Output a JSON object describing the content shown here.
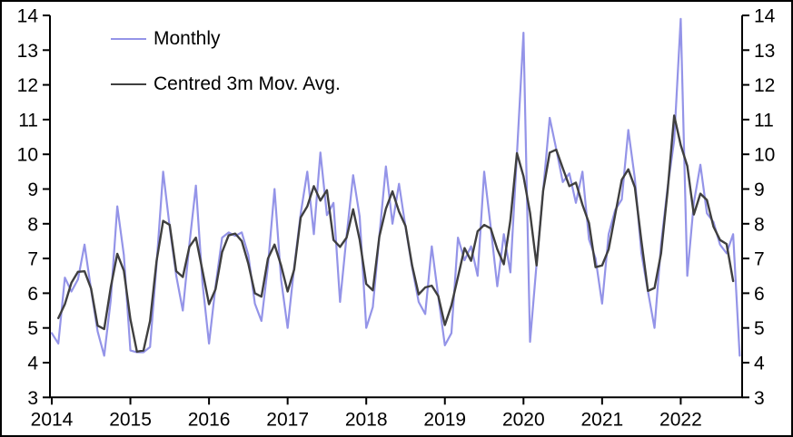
{
  "colors": {
    "background": "#ffffff",
    "axis": "#000000",
    "monthly_line": "#9494e8",
    "moving_avg_line": "#3f3f3f",
    "frame_border": "#000000"
  },
  "chart_data": {
    "type": "line",
    "title": "",
    "xlabel": "",
    "ylabel": "",
    "x_axis": {
      "tick_labels": [
        "2014",
        "2015",
        "2016",
        "2017",
        "2018",
        "2019",
        "2020",
        "2021",
        "2022"
      ],
      "start_month": "2014-01",
      "end_month": "2022-10"
    },
    "y_axis": {
      "ticks": [
        3,
        4,
        5,
        6,
        7,
        8,
        9,
        10,
        11,
        12,
        13,
        14
      ],
      "ylim": [
        3,
        14
      ],
      "mirrored_right_axis": true,
      "grid": false
    },
    "legend_position": "top-left-inside",
    "series": [
      {
        "name": "Monthly",
        "color": "#9494e8",
        "frequency": "monthly",
        "start": "2014-01",
        "values": [
          4.85,
          4.55,
          6.45,
          6.05,
          6.4,
          7.4,
          6.1,
          4.9,
          4.2,
          5.8,
          8.5,
          7.1,
          4.35,
          4.3,
          4.3,
          4.45,
          6.85,
          9.5,
          7.9,
          6.5,
          5.5,
          7.4,
          9.1,
          6.3,
          4.55,
          6.2,
          7.6,
          7.75,
          7.65,
          7.75,
          7.1,
          5.7,
          5.2,
          6.8,
          9.0,
          6.4,
          5.0,
          6.75,
          8.3,
          9.5,
          7.7,
          10.05,
          8.25,
          8.6,
          5.75,
          7.65,
          9.4,
          8.2,
          5.0,
          5.6,
          7.65,
          9.65,
          8.0,
          9.15,
          7.9,
          6.75,
          5.75,
          5.4,
          7.35,
          5.9,
          4.5,
          4.85,
          7.6,
          6.95,
          7.35,
          6.5,
          9.5,
          7.9,
          6.2,
          7.7,
          6.6,
          10.0,
          13.5,
          4.6,
          6.85,
          8.95,
          11.05,
          10.15,
          9.2,
          9.45,
          8.6,
          9.5,
          7.55,
          7.0,
          5.7,
          7.7,
          8.4,
          8.7,
          10.7,
          9.3,
          7.15,
          6.05,
          5.0,
          7.4,
          9.05,
          10.4,
          13.9,
          6.5,
          8.6,
          9.7,
          8.3,
          8.05,
          7.4,
          7.15,
          7.7,
          4.2
        ]
      },
      {
        "name": "Centred 3m Mov. Avg.",
        "color": "#3f3f3f",
        "derived_from": "Monthly",
        "derivation": "centred 3-month moving average of the Monthly series"
      }
    ]
  }
}
